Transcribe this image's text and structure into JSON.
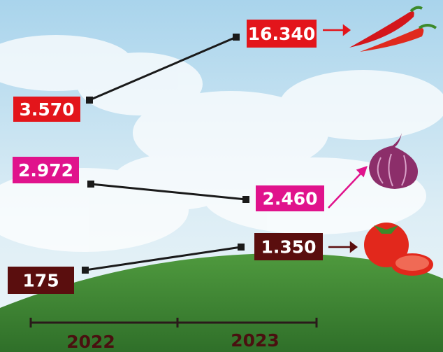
{
  "chart_data": {
    "type": "slope",
    "x": [
      "2022",
      "2023"
    ],
    "series": [
      {
        "color": "#e3151b",
        "values": [
          3570,
          16340
        ],
        "value_labels": [
          "3.570",
          "16.340"
        ]
      },
      {
        "color": "#e0138c",
        "values": [
          2972,
          2460
        ],
        "value_labels": [
          "2.972",
          "2.460"
        ]
      },
      {
        "color": "#5a0e0e",
        "values": [
          175,
          1350
        ],
        "value_labels": [
          "175",
          "1.350"
        ]
      }
    ]
  }
}
